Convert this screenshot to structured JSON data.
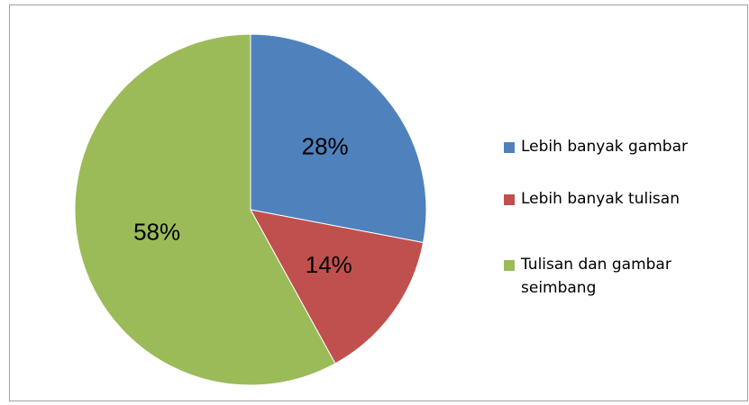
{
  "chart_data": {
    "type": "pie",
    "categories": [
      "Lebih banyak gambar",
      "Lebih banyak tulisan",
      "Tulisan dan gambar seimbang"
    ],
    "values": [
      28,
      14,
      58
    ],
    "value_labels": [
      "28%",
      "14%",
      "58%"
    ],
    "colors": [
      "#4f81bd",
      "#c0504d",
      "#9bbb59"
    ],
    "legend": "right"
  }
}
